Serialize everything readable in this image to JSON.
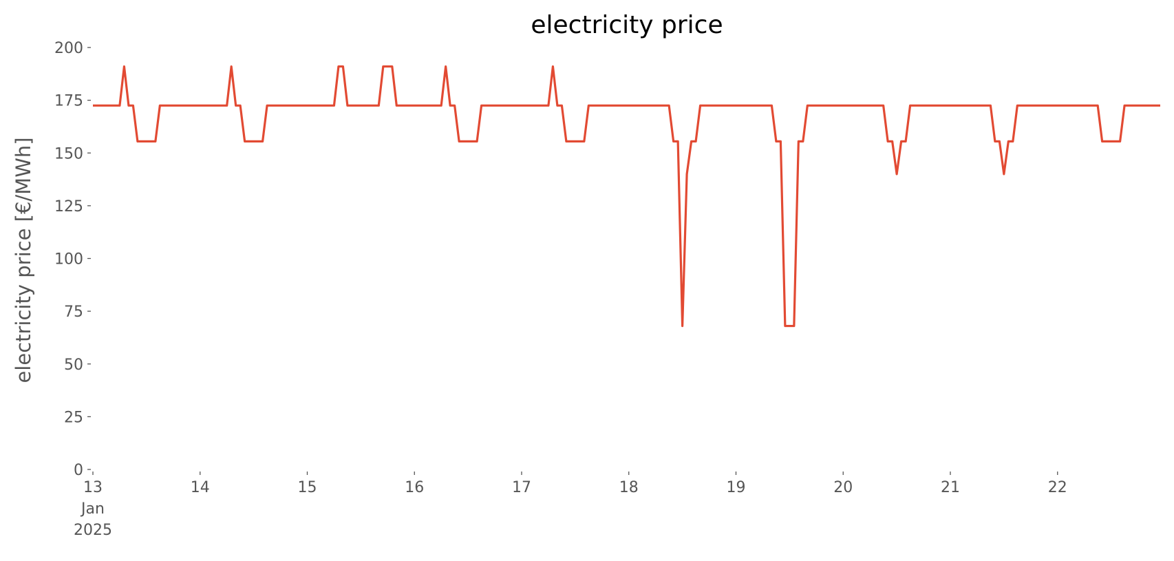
{
  "chart_data": {
    "type": "line",
    "title": "electricity price",
    "y_label": "electricity price [€/MWh]",
    "x": [
      0,
      6,
      7,
      8,
      9,
      10,
      14,
      15,
      30,
      31,
      32,
      33,
      34,
      38,
      39,
      54,
      55,
      56,
      57,
      64,
      65,
      67,
      68,
      78,
      79,
      80,
      81,
      82,
      86,
      87,
      102,
      103,
      104,
      105,
      106,
      110,
      111,
      129,
      130,
      131,
      132,
      133,
      134,
      135,
      136,
      152,
      153,
      154,
      155,
      157,
      158,
      159,
      160,
      177,
      178,
      179,
      180,
      181,
      182,
      183,
      201,
      202,
      203,
      204,
      205,
      206,
      207,
      225,
      226,
      230,
      231,
      239
    ],
    "series": [
      {
        "name": "electricity price",
        "color": "#e24a33",
        "values": [
          172.5,
          172.5,
          191,
          172.5,
          172.5,
          155.5,
          155.5,
          172.5,
          172.5,
          191,
          172.5,
          172.5,
          155.5,
          155.5,
          172.5,
          172.5,
          191,
          191,
          172.5,
          172.5,
          191,
          191,
          172.5,
          172.5,
          191,
          172.5,
          172.5,
          155.5,
          155.5,
          172.5,
          172.5,
          191,
          172.5,
          172.5,
          155.5,
          155.5,
          172.5,
          172.5,
          155.5,
          155.5,
          68,
          140,
          155.5,
          155.5,
          172.5,
          172.5,
          155.5,
          155.5,
          68,
          68,
          155.5,
          155.5,
          172.5,
          172.5,
          155.5,
          155.5,
          140,
          155.5,
          155.5,
          172.5,
          172.5,
          155.5,
          155.5,
          140,
          155.5,
          155.5,
          172.5,
          172.5,
          155.5,
          155.5,
          172.5,
          172.5
        ]
      }
    ],
    "xlim": [
      0,
      239
    ],
    "xticks": [
      {
        "value": 0,
        "label": "13 Jan 2025"
      },
      {
        "value": 24,
        "label": "14"
      },
      {
        "value": 48,
        "label": "15"
      },
      {
        "value": 72,
        "label": "16"
      },
      {
        "value": 96,
        "label": "17"
      },
      {
        "value": 120,
        "label": "18"
      },
      {
        "value": 144,
        "label": "19"
      },
      {
        "value": 168,
        "label": "20"
      },
      {
        "value": 192,
        "label": "21"
      },
      {
        "value": 216,
        "label": "22"
      }
    ],
    "ylim": [
      0,
      200
    ],
    "yticks": [
      0,
      25,
      50,
      75,
      100,
      125,
      150,
      175,
      200
    ],
    "grid": false
  }
}
